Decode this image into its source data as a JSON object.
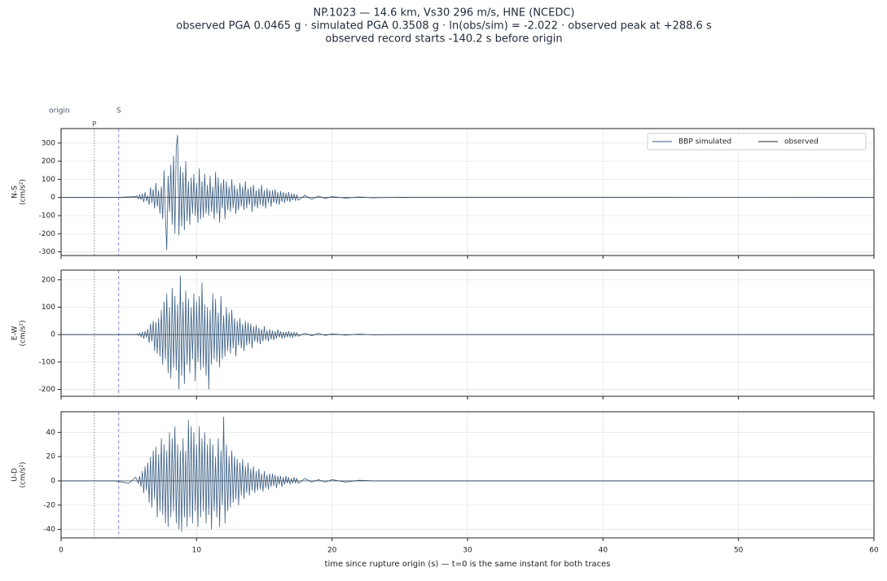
{
  "title": [
    "NP.1023  —  14.6 km, Vs30 296 m/s, HNE (NCEDC)",
    "observed PGA 0.0465 g   ·   simulated PGA 0.3508 g   ·   ln(obs/sim) = -2.022   ·   observed peak at +288.6 s",
    "observed record starts -140.2 s before origin"
  ],
  "xlabel": "time since rupture origin (s)   —   t=0 is the same instant for both traces",
  "markers": [
    {
      "label": "origin",
      "x": 0
    },
    {
      "label": "P",
      "x": 2.45,
      "color": "#888888"
    },
    {
      "label": "S",
      "x": 4.25,
      "color": "#7b8fd6"
    }
  ],
  "legend": {
    "loc": "upper right",
    "ncol": 2
  },
  "chart_data": [
    {
      "type": "line",
      "ylabel": [
        "N-S",
        "(cm/s²)"
      ],
      "xlim": [
        0,
        60
      ],
      "xticks": [
        0,
        10,
        20,
        30,
        40,
        50,
        60
      ],
      "ylim": [
        -320,
        380
      ],
      "yticks": [
        -300,
        -200,
        -100,
        0,
        100,
        200,
        300
      ],
      "grid": true,
      "x": [
        0,
        4,
        5,
        5.5,
        5.6,
        5.7,
        5.8,
        5.9,
        6,
        6.1,
        6.2,
        6.3,
        6.4,
        6.5,
        6.6,
        6.7,
        6.8,
        6.9,
        7,
        7.1,
        7.2,
        7.3,
        7.4,
        7.5,
        7.6,
        7.7,
        7.8,
        7.9,
        8,
        8.1,
        8.2,
        8.3,
        8.4,
        8.5,
        8.6,
        8.7,
        8.8,
        8.9,
        9,
        9.1,
        9.2,
        9.3,
        9.4,
        9.5,
        9.6,
        9.7,
        9.8,
        9.9,
        10,
        10.1,
        10.2,
        10.3,
        10.4,
        10.5,
        10.6,
        10.7,
        10.8,
        10.9,
        11,
        11.1,
        11.2,
        11.3,
        11.4,
        11.5,
        11.6,
        11.7,
        11.8,
        11.9,
        12,
        12.1,
        12.2,
        12.3,
        12.4,
        12.5,
        12.6,
        12.7,
        12.8,
        12.9,
        13,
        13.1,
        13.2,
        13.3,
        13.4,
        13.5,
        13.6,
        13.7,
        13.8,
        13.9,
        14,
        14.1,
        14.2,
        14.3,
        14.4,
        14.5,
        14.6,
        14.7,
        14.8,
        14.9,
        15,
        15.1,
        15.2,
        15.3,
        15.4,
        15.5,
        15.6,
        15.7,
        15.8,
        15.9,
        16,
        16.1,
        16.2,
        16.3,
        16.4,
        16.5,
        16.6,
        16.7,
        16.8,
        16.9,
        17,
        17.1,
        17.2,
        17.3,
        17.4,
        17.5,
        18,
        18.5,
        19,
        19.5,
        20,
        21,
        22,
        23,
        25,
        60
      ],
      "series": [
        {
          "name": "BBP simulated",
          "color": "#3b5f85",
          "values": [
            0,
            0,
            3,
            5,
            10,
            -8,
            15,
            -12,
            20,
            -25,
            30,
            -20,
            10,
            -40,
            55,
            -30,
            45,
            -60,
            80,
            -50,
            40,
            -90,
            60,
            -120,
            150,
            -100,
            -290,
            120,
            -80,
            180,
            -150,
            230,
            -200,
            280,
            345,
            -210,
            170,
            -160,
            140,
            -180,
            200,
            -130,
            90,
            -150,
            110,
            -90,
            130,
            -100,
            80,
            -140,
            160,
            -120,
            90,
            -110,
            130,
            -90,
            70,
            -100,
            120,
            -80,
            60,
            -120,
            140,
            -90,
            110,
            -140,
            80,
            -60,
            100,
            -120,
            90,
            -70,
            60,
            -80,
            100,
            -60,
            70,
            -90,
            50,
            -70,
            80,
            -50,
            60,
            -70,
            90,
            -60,
            50,
            -40,
            60,
            -80,
            70,
            -50,
            40,
            -60,
            50,
            -40,
            70,
            -50,
            40,
            -60,
            50,
            -30,
            40,
            -50,
            40,
            -30,
            45,
            -35,
            30,
            -40,
            35,
            -25,
            30,
            -30,
            25,
            -20,
            30,
            -25,
            20,
            -15,
            20,
            -18,
            15,
            -15,
            12,
            -10,
            8,
            -6,
            5,
            -4,
            3,
            -2,
            1,
            0
          ]
        },
        {
          "name": "observed",
          "color": "#1f2a3a",
          "x": [
            0,
            60
          ],
          "values": [
            0,
            0
          ]
        }
      ]
    },
    {
      "type": "line",
      "ylabel": [
        "E-W",
        "(cm/s²)"
      ],
      "xlim": [
        0,
        60
      ],
      "xticks": [
        0,
        10,
        20,
        30,
        40,
        50,
        60
      ],
      "ylim": [
        -225,
        235
      ],
      "yticks": [
        -200,
        -100,
        0,
        100,
        200
      ],
      "grid": true,
      "x": [
        0,
        4,
        5,
        5.5,
        5.6,
        5.7,
        5.8,
        5.9,
        6,
        6.1,
        6.2,
        6.3,
        6.4,
        6.5,
        6.6,
        6.7,
        6.8,
        6.9,
        7,
        7.1,
        7.2,
        7.3,
        7.4,
        7.5,
        7.6,
        7.7,
        7.8,
        7.9,
        8,
        8.1,
        8.2,
        8.3,
        8.4,
        8.5,
        8.6,
        8.7,
        8.8,
        8.9,
        9,
        9.1,
        9.2,
        9.3,
        9.4,
        9.5,
        9.6,
        9.7,
        9.8,
        9.9,
        10,
        10.1,
        10.2,
        10.3,
        10.4,
        10.5,
        10.6,
        10.7,
        10.8,
        10.9,
        11,
        11.1,
        11.2,
        11.3,
        11.4,
        11.5,
        11.6,
        11.7,
        11.8,
        11.9,
        12,
        12.1,
        12.2,
        12.3,
        12.4,
        12.5,
        12.6,
        12.7,
        12.8,
        12.9,
        13,
        13.1,
        13.2,
        13.3,
        13.4,
        13.5,
        13.6,
        13.7,
        13.8,
        13.9,
        14,
        14.1,
        14.2,
        14.3,
        14.4,
        14.5,
        14.6,
        14.7,
        14.8,
        14.9,
        15,
        15.1,
        15.2,
        15.3,
        15.4,
        15.5,
        15.6,
        15.7,
        15.8,
        15.9,
        16,
        16.1,
        16.2,
        16.3,
        16.4,
        16.5,
        16.6,
        16.7,
        16.8,
        16.9,
        17,
        17.1,
        17.2,
        17.3,
        17.4,
        17.5,
        18,
        18.5,
        19,
        19.5,
        20,
        21,
        22,
        23,
        25,
        60
      ],
      "series": [
        {
          "color": "#3b5f85",
          "values": [
            0,
            0,
            0,
            0,
            2,
            -3,
            5,
            -8,
            10,
            -15,
            12,
            -10,
            20,
            -30,
            40,
            -25,
            50,
            -60,
            45,
            -70,
            60,
            -80,
            90,
            -110,
            120,
            -90,
            150,
            -140,
            100,
            -160,
            170,
            -120,
            140,
            -130,
            110,
            -200,
            215,
            -150,
            120,
            -180,
            160,
            -110,
            130,
            -140,
            100,
            -90,
            150,
            -170,
            120,
            -100,
            140,
            -130,
            190,
            -120,
            110,
            -150,
            100,
            -200,
            90,
            -110,
            150,
            -90,
            130,
            -100,
            80,
            -120,
            140,
            -90,
            70,
            -80,
            100,
            -60,
            80,
            -70,
            90,
            -50,
            60,
            -80,
            50,
            -40,
            60,
            -50,
            40,
            -60,
            50,
            -40,
            45,
            -35,
            40,
            -50,
            30,
            -25,
            35,
            -30,
            25,
            -35,
            20,
            -25,
            30,
            -20,
            15,
            -25,
            20,
            -18,
            15,
            -20,
            12,
            -15,
            18,
            -10,
            12,
            -14,
            10,
            -12,
            10,
            -8,
            12,
            -9,
            7,
            -10,
            8,
            -6,
            7,
            -6,
            5,
            -4,
            5,
            -3,
            3,
            -2,
            2,
            -1,
            0,
            0
          ]
        },
        {
          "color": "#1f2a3a",
          "x": [
            0,
            60
          ],
          "values": [
            0,
            0
          ]
        }
      ]
    },
    {
      "type": "line",
      "ylabel": [
        "U-D",
        "(cm/s²)"
      ],
      "xlim": [
        0,
        60
      ],
      "xticks": [
        0,
        10,
        20,
        30,
        40,
        50,
        60
      ],
      "ylim": [
        -47,
        57
      ],
      "yticks": [
        -40,
        -20,
        0,
        20,
        40
      ],
      "grid": true,
      "x": [
        0,
        4,
        5,
        5.5,
        5.6,
        5.7,
        5.8,
        5.9,
        6,
        6.1,
        6.2,
        6.3,
        6.4,
        6.5,
        6.6,
        6.7,
        6.8,
        6.9,
        7,
        7.1,
        7.2,
        7.3,
        7.4,
        7.5,
        7.6,
        7.7,
        7.8,
        7.9,
        8,
        8.1,
        8.2,
        8.3,
        8.4,
        8.5,
        8.6,
        8.7,
        8.8,
        8.9,
        9,
        9.1,
        9.2,
        9.3,
        9.4,
        9.5,
        9.6,
        9.7,
        9.8,
        9.9,
        10,
        10.1,
        10.2,
        10.3,
        10.4,
        10.5,
        10.6,
        10.7,
        10.8,
        10.9,
        11,
        11.1,
        11.2,
        11.3,
        11.4,
        11.5,
        11.6,
        11.7,
        11.8,
        11.9,
        12,
        12.1,
        12.2,
        12.3,
        12.4,
        12.5,
        12.6,
        12.7,
        12.8,
        12.9,
        13,
        13.1,
        13.2,
        13.3,
        13.4,
        13.5,
        13.6,
        13.7,
        13.8,
        13.9,
        14,
        14.1,
        14.2,
        14.3,
        14.4,
        14.5,
        14.6,
        14.7,
        14.8,
        14.9,
        15,
        15.1,
        15.2,
        15.3,
        15.4,
        15.5,
        15.6,
        15.7,
        15.8,
        15.9,
        16,
        16.1,
        16.2,
        16.3,
        16.4,
        16.5,
        16.6,
        16.7,
        16.8,
        16.9,
        17,
        17.1,
        17.2,
        17.3,
        17.4,
        17.5,
        18,
        18.5,
        19,
        19.5,
        20,
        21,
        22,
        23,
        25,
        60
      ],
      "series": [
        {
          "color": "#3b5f85",
          "values": [
            0,
            0,
            -2,
            3,
            1,
            -2,
            4,
            -5,
            8,
            -10,
            12,
            -8,
            15,
            -18,
            20,
            -22,
            25,
            -15,
            28,
            -30,
            22,
            -25,
            35,
            -28,
            30,
            -35,
            25,
            -38,
            40,
            -30,
            35,
            -25,
            45,
            -35,
            30,
            -40,
            25,
            -42,
            35,
            -30,
            25,
            -38,
            50,
            -30,
            45,
            -35,
            40,
            -25,
            30,
            -38,
            45,
            -30,
            35,
            -25,
            40,
            -35,
            30,
            -28,
            35,
            -40,
            30,
            -25,
            20,
            -30,
            35,
            -38,
            25,
            -20,
            53,
            -35,
            30,
            -25,
            20,
            -22,
            25,
            -18,
            20,
            -15,
            18,
            -20,
            15,
            -12,
            18,
            -15,
            12,
            -10,
            15,
            -12,
            10,
            -8,
            12,
            -10,
            8,
            -8,
            10,
            -7,
            6,
            -9,
            8,
            -6,
            5,
            -7,
            6,
            -5,
            6,
            -4,
            5,
            -6,
            4,
            -3,
            4,
            -5,
            3,
            -3,
            4,
            -2,
            3,
            -3,
            2,
            -2,
            3,
            -2,
            2,
            -2,
            2,
            -1,
            1,
            -1,
            1,
            -1,
            0.5,
            0,
            0,
            0
          ]
        },
        {
          "color": "#1f2a3a",
          "x": [
            0,
            60
          ],
          "values": [
            0,
            0
          ]
        }
      ]
    }
  ]
}
